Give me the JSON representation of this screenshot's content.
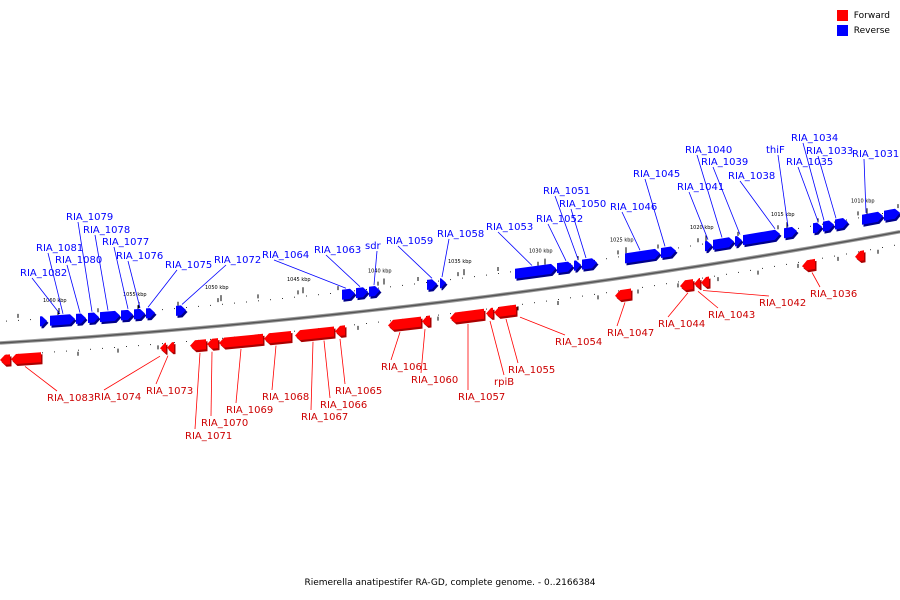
{
  "legend": {
    "forward_label": "Forward",
    "reverse_label": "Reverse",
    "forward_color": "#ff0000",
    "reverse_color": "#0000ff"
  },
  "caption": "Riemerella anatipestifer RA-GD, complete genome. - 0..2166384",
  "ticks": [
    "1060 kbp",
    "1055 kbp",
    "1050 kbp",
    "1045 kbp",
    "1040 kbp",
    "1035 kbp",
    "1030 kbp",
    "1025 kbp",
    "1020 kbp",
    "1015 kbp",
    "1010 kbp"
  ],
  "reverse_genes": [
    "RIA_1082",
    "RIA_1081",
    "RIA_1080",
    "RIA_1079",
    "RIA_1078",
    "RIA_1077",
    "RIA_1076",
    "RIA_1075",
    "RIA_1072",
    "RIA_1064",
    "RIA_1063",
    "sdr",
    "RIA_1059",
    "RIA_1058",
    "RIA_1053",
    "RIA_1052",
    "RIA_1051",
    "RIA_1050",
    "RIA_1046",
    "RIA_1045",
    "RIA_1041",
    "RIA_1040",
    "RIA_1039",
    "RIA_1038",
    "thiF",
    "RIA_1035",
    "RIA_1034",
    "RIA_1033",
    "RIA_1031"
  ],
  "forward_genes": [
    "RIA_1083",
    "RIA_1074",
    "RIA_1073",
    "RIA_1071",
    "RIA_1070",
    "RIA_1069",
    "RIA_1068",
    "RIA_1067",
    "RIA_1066",
    "RIA_1065",
    "RIA_1061",
    "RIA_1060",
    "RIA_1057",
    "rpiB",
    "RIA_1055",
    "RIA_1054",
    "RIA_1047",
    "RIA_1044",
    "RIA_1043",
    "RIA_1042",
    "RIA_1036"
  ]
}
